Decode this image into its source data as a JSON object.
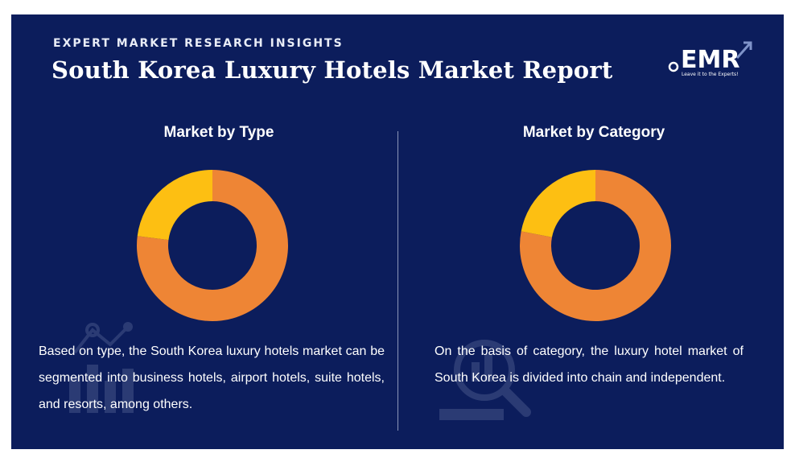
{
  "header": {
    "kicker": "EXPERT MARKET RESEARCH INSIGHTS",
    "title": "South Korea Luxury Hotels Market Report"
  },
  "logo": {
    "text": "EMR",
    "tagline": "Leave it to the Experts!"
  },
  "colors": {
    "background": "#0c1d5c",
    "orange": "#ee8535",
    "yellow": "#fdbf12"
  },
  "icons": [
    "bar-chart-watermark-icon",
    "magnifier-watermark-icon"
  ],
  "chart_data": [
    {
      "type": "pie",
      "title": "Market by Type",
      "donut": true,
      "values": [
        77,
        23
      ],
      "colors": [
        "#ee8535",
        "#fdbf12"
      ]
    },
    {
      "type": "pie",
      "title": "Market by Category",
      "donut": true,
      "values": [
        78,
        22
      ],
      "colors": [
        "#ee8535",
        "#fdbf12"
      ]
    }
  ],
  "left": {
    "description": "Based on type, the South Korea luxury hotels market can be segmented into business hotels, airport hotels, suite hotels, and resorts, among others."
  },
  "right": {
    "description": "On the basis of category, the luxury hotel market of South Korea is divided into chain and independent."
  }
}
